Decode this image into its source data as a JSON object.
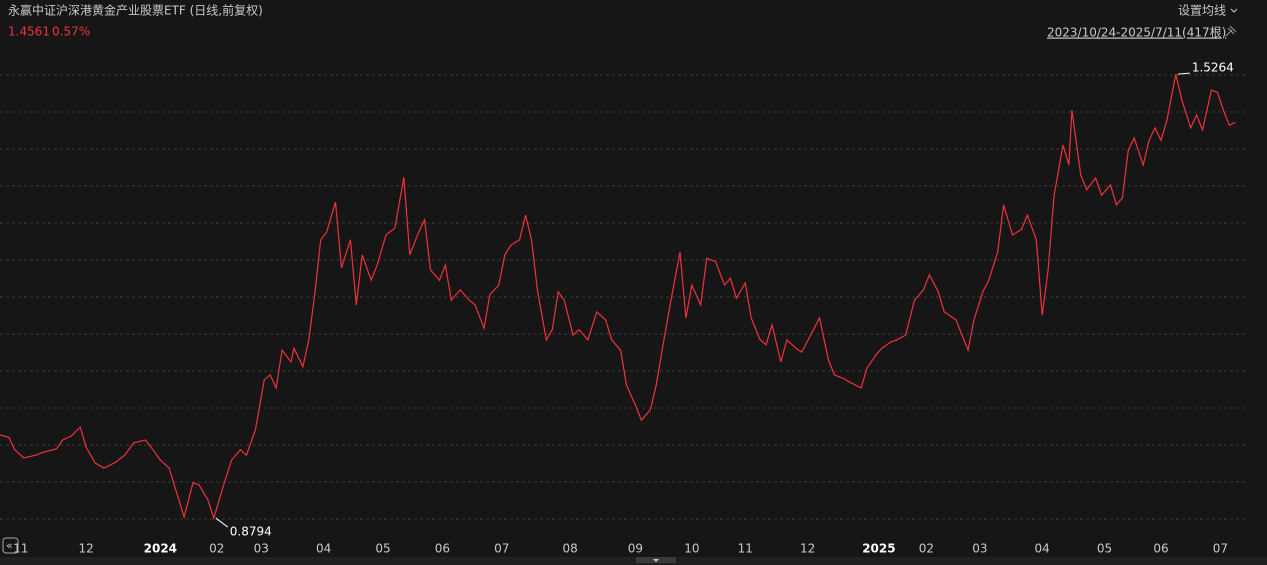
{
  "chart_data": {
    "type": "line",
    "title": "永赢中证沪深港黄金产业股票ETF (日线,前复权)",
    "change": "0.57%",
    "settings_label": "设置均线",
    "range_label": "2023/10/24-2025/7/11(417根)",
    "x": [
      0,
      3,
      5,
      8,
      12,
      15,
      19,
      21,
      24,
      27,
      29,
      32,
      35,
      39,
      42,
      45,
      49,
      51,
      54,
      57,
      59,
      62,
      65,
      67,
      70,
      72,
      75,
      78,
      81,
      83,
      86,
      89,
      91,
      93,
      95,
      98,
      99,
      102,
      104,
      106,
      108,
      110,
      113,
      115,
      118,
      120,
      122,
      125,
      127,
      130,
      133,
      136,
      138,
      141,
      143,
      145,
      148,
      150,
      152,
      155,
      158,
      160,
      163,
      165,
      168,
      170,
      172,
      175,
      177,
      179,
      181,
      184,
      186,
      188,
      190,
      193,
      195,
      198,
      201,
      204,
      206,
      209,
      211,
      214,
      216,
      219,
      221,
      223,
      226,
      229,
      231,
      233,
      236,
      238,
      241,
      244,
      246,
      248,
      251,
      253,
      256,
      258,
      260,
      263,
      265,
      268,
      270,
      273,
      276,
      279,
      281,
      284,
      286,
      290,
      292,
      295,
      297,
      300,
      302,
      305,
      308,
      311,
      313,
      316,
      318,
      322,
      324,
      326,
      328,
      331,
      333,
      336,
      338,
      341,
      344,
      346,
      349,
      351,
      353,
      355,
      358,
      360,
      361,
      364,
      366,
      369,
      371,
      374,
      376,
      378,
      380,
      382,
      385,
      387,
      389,
      391,
      393,
      396,
      398,
      401,
      403,
      405,
      408,
      410,
      412,
      414,
      416
    ],
    "series": [
      {
        "name": "永赢中证沪深港黄金产业股票ETF",
        "color": "#f0323c",
        "values": [
          1.0005,
          0.997,
          0.979,
          0.967,
          0.971,
          0.976,
          0.98,
          0.993,
          0.999,
          1.012,
          0.983,
          0.96,
          0.952,
          0.961,
          0.971,
          0.989,
          0.993,
          0.982,
          0.964,
          0.952,
          0.923,
          0.881,
          0.931,
          0.928,
          0.906,
          0.8794,
          0.923,
          0.964,
          0.979,
          0.971,
          1.008,
          1.081,
          1.088,
          1.069,
          1.124,
          1.107,
          1.127,
          1.1,
          1.139,
          1.205,
          1.285,
          1.296,
          1.34,
          1.244,
          1.285,
          1.19,
          1.263,
          1.226,
          1.248,
          1.292,
          1.302,
          1.376,
          1.263,
          1.296,
          1.314,
          1.241,
          1.226,
          1.248,
          1.197,
          1.212,
          1.197,
          1.19,
          1.156,
          1.205,
          1.219,
          1.263,
          1.277,
          1.285,
          1.321,
          1.285,
          1.212,
          1.139,
          1.154,
          1.209,
          1.197,
          1.146,
          1.154,
          1.139,
          1.18,
          1.168,
          1.139,
          1.124,
          1.073,
          1.044,
          1.022,
          1.037,
          1.073,
          1.124,
          1.197,
          1.267,
          1.171,
          1.219,
          1.19,
          1.258,
          1.253,
          1.219,
          1.229,
          1.2,
          1.222,
          1.171,
          1.139,
          1.132,
          1.161,
          1.107,
          1.139,
          1.127,
          1.121,
          1.146,
          1.171,
          1.11,
          1.088,
          1.083,
          1.078,
          1.069,
          1.098,
          1.117,
          1.127,
          1.136,
          1.139,
          1.146,
          1.197,
          1.212,
          1.234,
          1.209,
          1.18,
          1.168,
          1.146,
          1.124,
          1.168,
          1.209,
          1.226,
          1.267,
          1.336,
          1.292,
          1.3,
          1.321,
          1.285,
          1.175,
          1.241,
          1.35,
          1.423,
          1.394,
          1.474,
          1.379,
          1.358,
          1.375,
          1.35,
          1.365,
          1.336,
          1.346,
          1.416,
          1.433,
          1.394,
          1.43,
          1.448,
          1.43,
          1.459,
          1.5264,
          1.489,
          1.448,
          1.467,
          1.445,
          1.503,
          1.5,
          1.474,
          1.452,
          1.4561
        ]
      }
    ],
    "xlim": [
      0,
      419.3
    ],
    "ylim": [
      0.862,
      1.547
    ],
    "xticks": [
      {
        "value": 7,
        "label": "11"
      },
      {
        "value": 29,
        "label": "12"
      },
      {
        "value": 54,
        "label": "2024"
      },
      {
        "value": 73,
        "label": "02"
      },
      {
        "value": 88,
        "label": "03"
      },
      {
        "value": 109,
        "label": "04"
      },
      {
        "value": 129,
        "label": "05"
      },
      {
        "value": 149,
        "label": "06"
      },
      {
        "value": 169,
        "label": "07"
      },
      {
        "value": 192,
        "label": "08"
      },
      {
        "value": 214,
        "label": "09"
      },
      {
        "value": 233,
        "label": "10"
      },
      {
        "value": 251,
        "label": "11"
      },
      {
        "value": 272,
        "label": "12"
      },
      {
        "value": 296,
        "label": "2025"
      },
      {
        "value": 312,
        "label": "02"
      },
      {
        "value": 330,
        "label": "03"
      },
      {
        "value": 351,
        "label": "04"
      },
      {
        "value": 372,
        "label": "05"
      },
      {
        "value": 391,
        "label": "06"
      },
      {
        "value": 411,
        "label": "07"
      }
    ],
    "min_index": 25,
    "max_index": 157
  }
}
